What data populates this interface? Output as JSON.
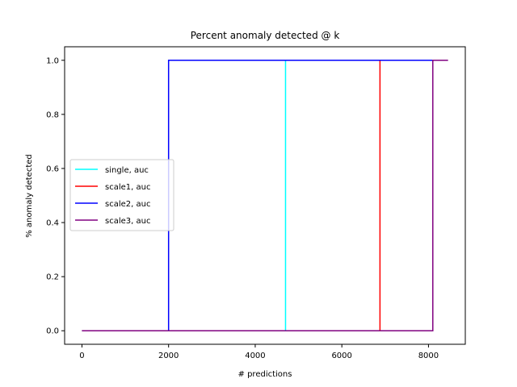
{
  "chart_data": {
    "type": "line",
    "title": "Percent anomaly detected @ k",
    "xlabel": "# predictions",
    "ylabel": "% anomaly detected",
    "xlim": [
      -400,
      8850
    ],
    "ylim": [
      -0.05,
      1.05
    ],
    "xticks": [
      0,
      2000,
      4000,
      6000,
      8000
    ],
    "xtick_labels": [
      "0",
      "2000",
      "4000",
      "6000",
      "8000"
    ],
    "yticks": [
      0.0,
      0.2,
      0.4,
      0.6,
      0.8,
      1.0
    ],
    "ytick_labels": [
      "0.0",
      "0.2",
      "0.4",
      "0.6",
      "0.8",
      "1.0"
    ],
    "grid": false,
    "legend_position": "center-left",
    "series": [
      {
        "name": "single, auc",
        "color": "#00ffff",
        "x": [
          0,
          4700,
          4700,
          8450
        ],
        "y": [
          0,
          0,
          1,
          1
        ]
      },
      {
        "name": "scale1, auc",
        "color": "#ff0000",
        "x": [
          0,
          6880,
          6880,
          8450
        ],
        "y": [
          0,
          0,
          1,
          1
        ]
      },
      {
        "name": "scale2, auc",
        "color": "#0000ff",
        "x": [
          0,
          2000,
          2000,
          8450
        ],
        "y": [
          0,
          0,
          1,
          1
        ]
      },
      {
        "name": "scale3, auc",
        "color": "#800080",
        "x": [
          0,
          8100,
          8100,
          8450
        ],
        "y": [
          0,
          0,
          1,
          1
        ]
      }
    ]
  }
}
